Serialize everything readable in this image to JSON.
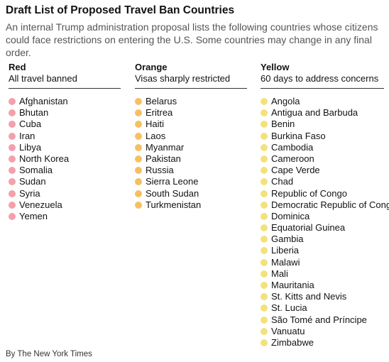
{
  "header": {
    "title": "Draft List of Proposed Travel Ban Countries",
    "subtitle": "An internal Trump administration proposal lists the following countries whose citizens could face restrictions on entering the U.S. Some countries may change in any final order."
  },
  "columns": [
    {
      "heading": "Red",
      "description": "All travel banned",
      "dot_color": "#f4a0ab",
      "countries": [
        "Afghanistan",
        "Bhutan",
        "Cuba",
        "Iran",
        "Libya",
        "North Korea",
        "Somalia",
        "Sudan",
        "Syria",
        "Venezuela",
        "Yemen"
      ]
    },
    {
      "heading": "Orange",
      "description": "Visas sharply restricted",
      "dot_color": "#f6c061",
      "countries": [
        "Belarus",
        "Eritrea",
        "Haiti",
        "Laos",
        "Myanmar",
        "Pakistan",
        "Russia",
        "Sierra Leone",
        "South Sudan",
        "Turkmenistan"
      ]
    },
    {
      "heading": "Yellow",
      "description": "60 days to address concerns",
      "dot_color": "#f3e27c",
      "countries": [
        "Angola",
        "Antigua and Barbuda",
        "Benin",
        "Burkina Faso",
        "Cambodia",
        "Cameroon",
        "Cape Verde",
        "Chad",
        "Republic of Congo",
        "Democratic Republic of Congo",
        "Dominica",
        "Equatorial Guinea",
        "Gambia",
        "Liberia",
        "Malawi",
        "Mali",
        "Mauritania",
        "St. Kitts and Nevis",
        "St. Lucia",
        "São Tomé and Príncipe",
        "Vanuatu",
        "Zimbabwe"
      ]
    }
  ],
  "footer": {
    "byline": "By The New York Times"
  }
}
